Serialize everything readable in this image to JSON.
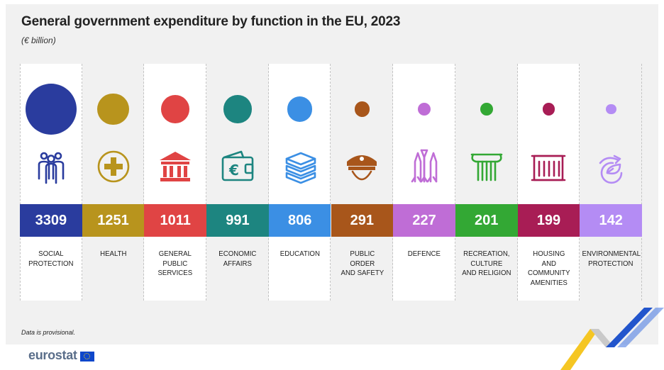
{
  "title": "General government expenditure by function in the EU, 2023",
  "subtitle": "(€ billion)",
  "note": "Data is provisional.",
  "logo": "eurostat",
  "chart_data": {
    "type": "bar",
    "categories": [
      "Social protection",
      "Health",
      "General public services",
      "Economic affairs",
      "Education",
      "Public order and safety",
      "Defence",
      "Recreation, culture and religion",
      "Housing and community amenities",
      "Environmental protection"
    ],
    "values": [
      3309,
      1251,
      1011,
      991,
      806,
      291,
      227,
      201,
      199,
      142
    ],
    "value_labels": [
      "3309",
      "1251",
      "1011",
      "991",
      "806",
      "291",
      "227",
      "201",
      "199",
      "142"
    ],
    "label_lines": [
      [
        "SOCIAL",
        "PROTECTION"
      ],
      [
        "HEALTH"
      ],
      [
        "GENERAL",
        "PUBLIC",
        "SERVICES"
      ],
      [
        "ECONOMIC",
        "AFFAIRS"
      ],
      [
        "EDUCATION"
      ],
      [
        "PUBLIC",
        "ORDER",
        "AND SAFETY"
      ],
      [
        "DEFENCE"
      ],
      [
        "RECREATION,",
        "CULTURE",
        "AND RELIGION"
      ],
      [
        "HOUSING",
        "AND",
        "COMMUNITY",
        "AMENITIES"
      ],
      [
        "ENVIRONMENTAL",
        "PROTECTION"
      ]
    ],
    "colors": [
      "#2a3c9e",
      "#b8941d",
      "#e04444",
      "#1d8580",
      "#3b8fe4",
      "#a8561b",
      "#bf6dd6",
      "#33a834",
      "#a81d55",
      "#b48cf4"
    ],
    "icons": [
      "people-group-icon",
      "medical-cross-icon",
      "government-building-icon",
      "wallet-euro-icon",
      "books-stack-icon",
      "police-cap-icon",
      "missiles-icon",
      "column-capital-icon",
      "building-facade-icon",
      "leaf-hand-icon"
    ],
    "encoding": "circle area proportional to value"
  }
}
